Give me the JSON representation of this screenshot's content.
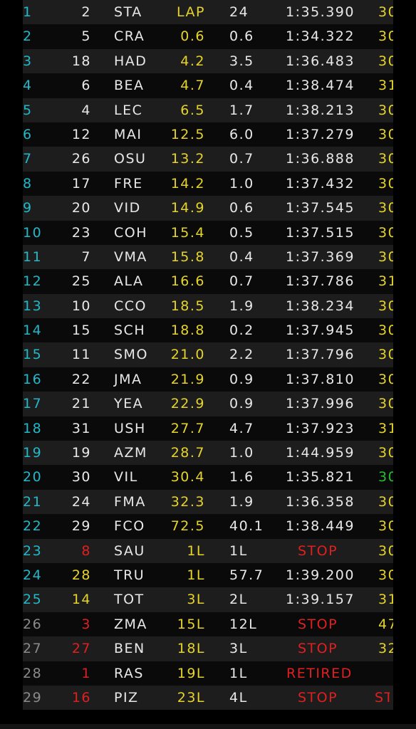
{
  "colors": {
    "position": "#22b8c8",
    "gap": "#e6d42a",
    "stop": "#e02020",
    "best_green": "#22c030"
  },
  "rows": [
    {
      "pos": "1",
      "num": "2",
      "code": "STA",
      "gap": "LAP",
      "int": "24",
      "last": "1:35.390",
      "best": "30"
    },
    {
      "pos": "2",
      "num": "5",
      "code": "CRA",
      "gap": "0.6",
      "int": "0.6",
      "last": "1:34.322",
      "best": "30"
    },
    {
      "pos": "3",
      "num": "18",
      "code": "HAD",
      "gap": "4.2",
      "int": "3.5",
      "last": "1:36.483",
      "best": "30"
    },
    {
      "pos": "4",
      "num": "6",
      "code": "BEA",
      "gap": "4.7",
      "int": "0.4",
      "last": "1:38.474",
      "best": "31"
    },
    {
      "pos": "5",
      "num": "4",
      "code": "LEC",
      "gap": "6.5",
      "int": "1.7",
      "last": "1:38.213",
      "best": "30"
    },
    {
      "pos": "6",
      "num": "12",
      "code": "MAI",
      "gap": "12.5",
      "int": "6.0",
      "last": "1:37.279",
      "best": "30"
    },
    {
      "pos": "7",
      "num": "26",
      "code": "OSU",
      "gap": "13.2",
      "int": "0.7",
      "last": "1:36.888",
      "best": "30"
    },
    {
      "pos": "8",
      "num": "17",
      "code": "FRE",
      "gap": "14.2",
      "int": "1.0",
      "last": "1:37.432",
      "best": "30"
    },
    {
      "pos": "9",
      "num": "20",
      "code": "VID",
      "gap": "14.9",
      "int": "0.6",
      "last": "1:37.545",
      "best": "30"
    },
    {
      "pos": "10",
      "num": "23",
      "code": "COH",
      "gap": "15.4",
      "int": "0.5",
      "last": "1:37.515",
      "best": "30"
    },
    {
      "pos": "11",
      "num": "7",
      "code": "VMA",
      "gap": "15.8",
      "int": "0.4",
      "last": "1:37.369",
      "best": "30"
    },
    {
      "pos": "12",
      "num": "25",
      "code": "ALA",
      "gap": "16.6",
      "int": "0.7",
      "last": "1:37.786",
      "best": "31"
    },
    {
      "pos": "13",
      "num": "10",
      "code": "CCO",
      "gap": "18.5",
      "int": "1.9",
      "last": "1:38.234",
      "best": "30"
    },
    {
      "pos": "14",
      "num": "15",
      "code": "SCH",
      "gap": "18.8",
      "int": "0.2",
      "last": "1:37.945",
      "best": "30"
    },
    {
      "pos": "15",
      "num": "11",
      "code": "SMO",
      "gap": "21.0",
      "int": "2.2",
      "last": "1:37.796",
      "best": "30"
    },
    {
      "pos": "16",
      "num": "22",
      "code": "JMA",
      "gap": "21.9",
      "int": "0.9",
      "last": "1:37.810",
      "best": "30"
    },
    {
      "pos": "17",
      "num": "21",
      "code": "YEA",
      "gap": "22.9",
      "int": "0.9",
      "last": "1:37.996",
      "best": "30"
    },
    {
      "pos": "18",
      "num": "31",
      "code": "USH",
      "gap": "27.7",
      "int": "4.7",
      "last": "1:37.923",
      "best": "31"
    },
    {
      "pos": "19",
      "num": "19",
      "code": "AZM",
      "gap": "28.7",
      "int": "1.0",
      "last": "1:44.959",
      "best": "30"
    },
    {
      "pos": "20",
      "num": "30",
      "code": "VIL",
      "gap": "30.4",
      "int": "1.6",
      "last": "1:35.821",
      "best": "30",
      "best_color": "green"
    },
    {
      "pos": "21",
      "num": "24",
      "code": "FMA",
      "gap": "32.3",
      "int": "1.9",
      "last": "1:36.358",
      "best": "30"
    },
    {
      "pos": "22",
      "num": "29",
      "code": "FCO",
      "gap": "72.5",
      "int": "40.1",
      "last": "1:38.449",
      "best": "30"
    },
    {
      "pos": "23",
      "num": "8",
      "num_color": "red",
      "code": "SAU",
      "gap": "1L",
      "int": "1L",
      "last": "STOP",
      "last_color": "red",
      "best": "30"
    },
    {
      "pos": "24",
      "num": "28",
      "num_color": "yellow",
      "code": "TRU",
      "gap": "1L",
      "int": "57.7",
      "last": "1:39.200",
      "best": "30"
    },
    {
      "pos": "25",
      "num": "14",
      "num_color": "yellow",
      "code": "TOT",
      "gap": "3L",
      "int": "2L",
      "last": "1:39.157",
      "best": "31"
    },
    {
      "pos": "26",
      "pos_color": "dim",
      "num": "3",
      "num_color": "red",
      "code": "ZMA",
      "gap": "15L",
      "int": "12L",
      "last": "STOP",
      "last_color": "red",
      "best": "47"
    },
    {
      "pos": "27",
      "pos_color": "dim",
      "num": "27",
      "num_color": "red",
      "code": "BEN",
      "gap": "18L",
      "int": "3L",
      "last": "STOP",
      "last_color": "red",
      "best": "32"
    },
    {
      "pos": "28",
      "pos_color": "dim",
      "num": "1",
      "num_color": "red",
      "code": "RAS",
      "gap": "19L",
      "int": "1L",
      "last": "RETIRED",
      "last_color": "red",
      "best": ""
    },
    {
      "pos": "29",
      "pos_color": "dim",
      "num": "16",
      "num_color": "red",
      "code": "PIZ",
      "gap": "23L",
      "int": "4L",
      "last": "STOP",
      "last_color": "red",
      "best": "ST",
      "best_color": "red"
    }
  ]
}
